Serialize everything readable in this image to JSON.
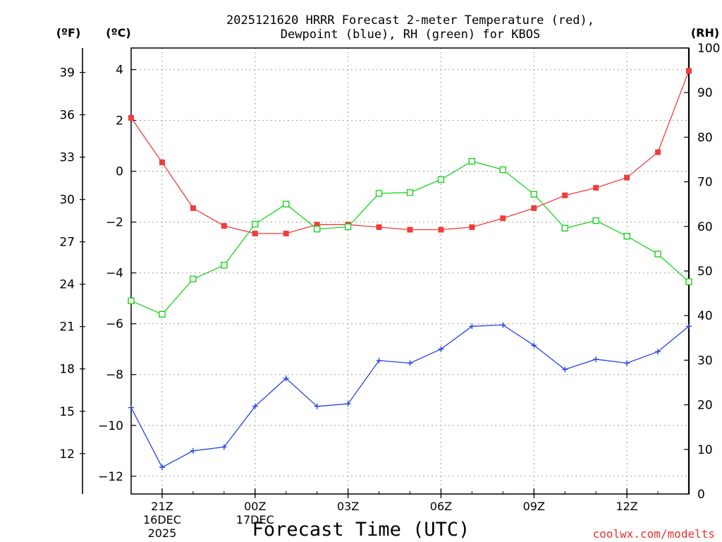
{
  "colors": {
    "temperature": "#f03c3c",
    "dewpoint": "#2844e6",
    "rh": "#1ed21e",
    "credit": "#e83030",
    "grid": "#a0a0a0"
  },
  "chart_data": {
    "type": "line",
    "title_line1": "2025121620 HRRR Forecast 2-meter Temperature (red),",
    "title_line2": "Dewpoint (blue), RH (green) for KBOS",
    "xlabel": "Forecast Time (UTC)",
    "credit": "coolwx.com/modelts",
    "left_unit_label": "(ºF)",
    "celsius_unit_label": "(ºC)",
    "right_unit_label": "(RH)",
    "x_hours": [
      0,
      1,
      2,
      3,
      4,
      5,
      6,
      7,
      8,
      9,
      10,
      11,
      12,
      13,
      14,
      15,
      16,
      17,
      18
    ],
    "x_range": [
      0,
      18
    ],
    "x_ticks": [
      {
        "hour": 1,
        "label": "21Z",
        "sub1": "16DEC",
        "sub2": "2025"
      },
      {
        "hour": 4,
        "label": "00Z",
        "sub1": "17DEC",
        "sub2": ""
      },
      {
        "hour": 7,
        "label": "03Z",
        "sub1": "",
        "sub2": ""
      },
      {
        "hour": 10,
        "label": "06Z",
        "sub1": "",
        "sub2": ""
      },
      {
        "hour": 13,
        "label": "09Z",
        "sub1": "",
        "sub2": ""
      },
      {
        "hour": 16,
        "label": "12Z",
        "sub1": "",
        "sub2": ""
      }
    ],
    "celsius_range": [
      -12.7,
      4.85
    ],
    "celsius_ticks": [
      4,
      2,
      0,
      -2,
      -4,
      -6,
      -8,
      -10,
      -12
    ],
    "celsius_tick_labels": [
      "4",
      "2",
      "0",
      "−2",
      "−4",
      "−6",
      "−8",
      "−10",
      "−12"
    ],
    "fahrenheit_ticks": [
      39,
      36,
      33,
      30,
      27,
      24,
      21,
      18,
      15,
      12
    ],
    "fahrenheit_tick_labels": [
      "39",
      "36",
      "33",
      "30",
      "27",
      "24",
      "21",
      "18",
      "15",
      "12"
    ],
    "rh_range": [
      0,
      100
    ],
    "rh_ticks": [
      100,
      90,
      80,
      70,
      60,
      50,
      40,
      30,
      20,
      10,
      0
    ],
    "rh_tick_labels": [
      "100",
      "90",
      "80",
      "70",
      "60",
      "50",
      "40",
      "30",
      "20",
      "10",
      "0"
    ],
    "series": [
      {
        "name": "Temperature",
        "unit": "C",
        "color": "#f03c3c",
        "marker": "filled-square",
        "values": [
          2.1,
          0.35,
          -1.45,
          -2.15,
          -2.45,
          -2.45,
          -2.1,
          -2.1,
          -2.2,
          -2.3,
          -2.3,
          -2.2,
          -1.85,
          -1.45,
          -0.95,
          -0.65,
          -0.25,
          0.75,
          3.95
        ]
      },
      {
        "name": "Dewpoint",
        "unit": "C",
        "color": "#2844e6",
        "marker": "plus",
        "values": [
          -9.3,
          -11.65,
          -11.0,
          -10.85,
          -9.25,
          -8.15,
          -9.25,
          -9.15,
          -7.45,
          -7.55,
          -7.0,
          -6.1,
          -6.05,
          -6.85,
          -7.8,
          -7.4,
          -7.55,
          -7.1,
          -6.1
        ]
      },
      {
        "name": "RH",
        "unit": "%",
        "color": "#1ed21e",
        "marker": "open-square",
        "values": [
          43.3,
          40.3,
          48.2,
          51.3,
          60.5,
          65.0,
          59.4,
          59.9,
          67.4,
          67.6,
          70.5,
          74.6,
          72.7,
          67.2,
          59.6,
          61.3,
          57.8,
          53.8,
          47.6
        ]
      }
    ]
  }
}
